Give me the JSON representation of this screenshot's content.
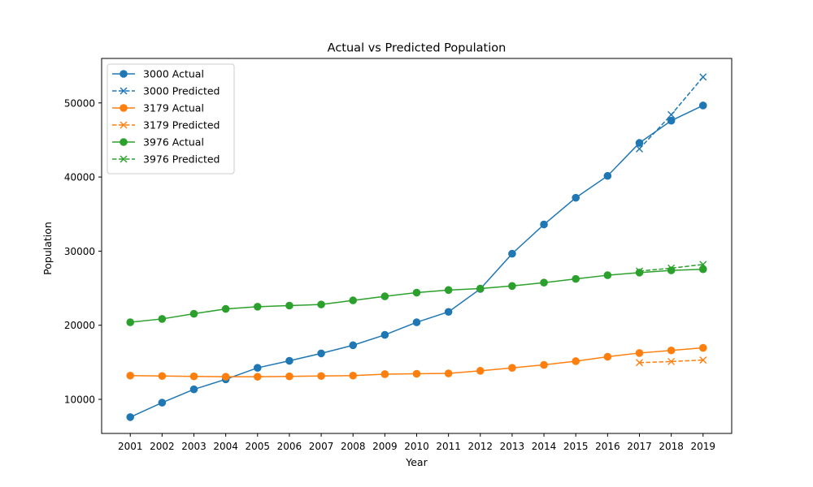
{
  "chart_data": {
    "type": "line",
    "title": "Actual vs Predicted Population",
    "xlabel": "Year",
    "ylabel": "Population",
    "x": [
      2001,
      2002,
      2003,
      2004,
      2005,
      2006,
      2007,
      2008,
      2009,
      2010,
      2011,
      2012,
      2013,
      2014,
      2015,
      2016,
      2017,
      2018,
      2019
    ],
    "xlim": [
      2000.1,
      2019.9
    ],
    "ylim": [
      5400,
      56000
    ],
    "yticks": [
      10000,
      20000,
      30000,
      40000,
      50000
    ],
    "grid": false,
    "legend_position": "upper-left",
    "series": [
      {
        "name": "3000 Actual",
        "color": "#1f77b4",
        "linestyle": "solid",
        "marker": "circle",
        "x": [
          2001,
          2002,
          2003,
          2004,
          2005,
          2006,
          2007,
          2008,
          2009,
          2010,
          2011,
          2012,
          2013,
          2014,
          2015,
          2016,
          2017,
          2018,
          2019
        ],
        "values": [
          7600,
          9550,
          11350,
          12700,
          14250,
          15200,
          16200,
          17300,
          18700,
          20400,
          21800,
          24900,
          29650,
          33600,
          37200,
          40150,
          44600,
          47600,
          49650
        ]
      },
      {
        "name": "3000 Predicted",
        "color": "#1f77b4",
        "linestyle": "dashed",
        "marker": "x",
        "x": [
          2017,
          2018,
          2019
        ],
        "values": [
          43800,
          48400,
          53500
        ]
      },
      {
        "name": "3179 Actual",
        "color": "#ff7f0e",
        "linestyle": "solid",
        "marker": "circle",
        "x": [
          2001,
          2002,
          2003,
          2004,
          2005,
          2006,
          2007,
          2008,
          2009,
          2010,
          2011,
          2012,
          2013,
          2014,
          2015,
          2016,
          2017,
          2018,
          2019
        ],
        "values": [
          13200,
          13150,
          13100,
          13050,
          13050,
          13100,
          13150,
          13200,
          13400,
          13450,
          13500,
          13850,
          14250,
          14650,
          15150,
          15750,
          16250,
          16600,
          16950
        ]
      },
      {
        "name": "3179 Predicted",
        "color": "#ff7f0e",
        "linestyle": "dashed",
        "marker": "x",
        "x": [
          2017,
          2018,
          2019
        ],
        "values": [
          14950,
          15100,
          15300
        ]
      },
      {
        "name": "3976 Actual",
        "color": "#2ca02c",
        "linestyle": "solid",
        "marker": "circle",
        "x": [
          2001,
          2002,
          2003,
          2004,
          2005,
          2006,
          2007,
          2008,
          2009,
          2010,
          2011,
          2012,
          2013,
          2014,
          2015,
          2016,
          2017,
          2018,
          2019
        ],
        "values": [
          20400,
          20850,
          21550,
          22200,
          22500,
          22650,
          22800,
          23350,
          23900,
          24400,
          24750,
          24950,
          25300,
          25750,
          26250,
          26750,
          27100,
          27400,
          27550
        ]
      },
      {
        "name": "3976 Predicted",
        "color": "#2ca02c",
        "linestyle": "dashed",
        "marker": "x",
        "x": [
          2017,
          2018,
          2019
        ],
        "values": [
          27300,
          27700,
          28200
        ]
      }
    ]
  }
}
